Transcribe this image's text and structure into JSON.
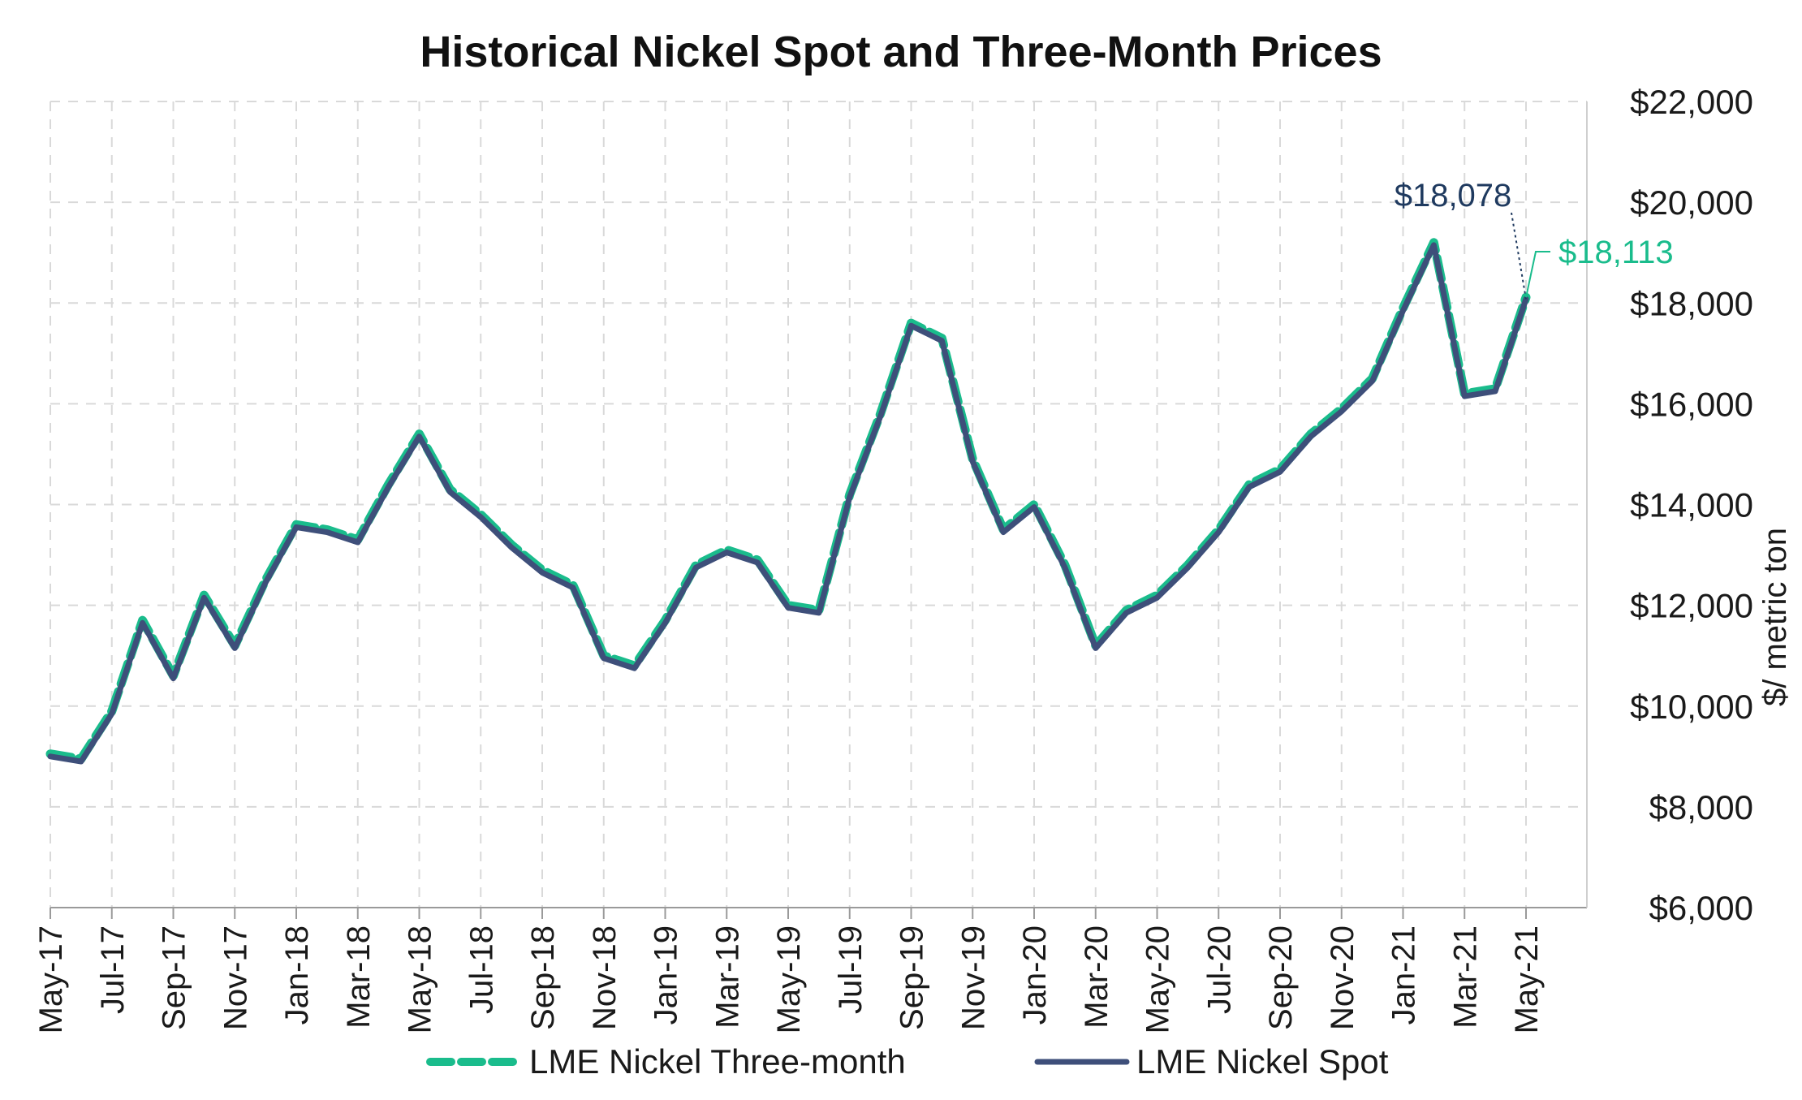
{
  "chart_data": {
    "type": "line",
    "title": "Historical Nickel Spot and Three-Month Prices",
    "ylabel": "$/ metric ton",
    "xlabel": "",
    "ylim": [
      6000,
      22000
    ],
    "y_ticks": [
      6000,
      8000,
      10000,
      12000,
      14000,
      16000,
      18000,
      20000,
      22000
    ],
    "y_tick_labels": [
      "$6,000",
      "$8,000",
      "$10,000",
      "$12,000",
      "$14,000",
      "$16,000",
      "$18,000",
      "$20,000",
      "$22,000"
    ],
    "x_ticks": [
      "May-17",
      "Jul-17",
      "Sep-17",
      "Nov-17",
      "Jan-18",
      "Mar-18",
      "May-18",
      "Jul-18",
      "Sep-18",
      "Nov-18",
      "Jan-19",
      "Mar-19",
      "May-19",
      "Jul-19",
      "Sep-19",
      "Nov-19",
      "Jan-20",
      "Mar-20",
      "May-20",
      "Jul-20",
      "Sep-20",
      "Nov-20",
      "Jan-21",
      "Mar-21",
      "May-21"
    ],
    "grid": true,
    "legend_position": "bottom",
    "series": [
      {
        "name": "LME Nickel Three-month",
        "color": "#1abc8c",
        "style": "dashed",
        "x": [
          "May-17",
          "Jun-17",
          "Jul-17",
          "Aug-17",
          "Sep-17",
          "Oct-17",
          "Nov-17",
          "Dec-17",
          "Jan-18",
          "Feb-18",
          "Mar-18",
          "Apr-18",
          "May-18",
          "Jun-18",
          "Jul-18",
          "Aug-18",
          "Sep-18",
          "Oct-18",
          "Nov-18",
          "Dec-18",
          "Jan-19",
          "Feb-19",
          "Mar-19",
          "Apr-19",
          "May-19",
          "Jun-19",
          "Jul-19",
          "Aug-19",
          "Sep-19",
          "Oct-19",
          "Nov-19",
          "Dec-19",
          "Jan-20",
          "Feb-20",
          "Mar-20",
          "Apr-20",
          "May-20",
          "Jun-20",
          "Jul-20",
          "Aug-20",
          "Sep-20",
          "Oct-20",
          "Nov-20",
          "Dec-20",
          "Jan-21",
          "Feb-21",
          "Mar-21",
          "Apr-21",
          "May-21"
        ],
        "values": [
          9050,
          8950,
          9900,
          11700,
          10600,
          12200,
          11200,
          12500,
          13600,
          13500,
          13300,
          14400,
          15400,
          14300,
          13800,
          13200,
          12700,
          12400,
          11000,
          10800,
          11700,
          12800,
          13100,
          12900,
          12000,
          11900,
          14200,
          15800,
          17600,
          17300,
          14900,
          13500,
          14000,
          12800,
          11200,
          11900,
          12200,
          12800,
          13500,
          14400,
          14700,
          15400,
          15900,
          16500,
          17900,
          19200,
          16200,
          16300,
          18113
        ]
      },
      {
        "name": "LME Nickel Spot",
        "color": "#3e4f7a",
        "style": "solid",
        "x": [
          "May-17",
          "Jun-17",
          "Jul-17",
          "Aug-17",
          "Sep-17",
          "Oct-17",
          "Nov-17",
          "Dec-17",
          "Jan-18",
          "Feb-18",
          "Mar-18",
          "Apr-18",
          "May-18",
          "Jun-18",
          "Jul-18",
          "Aug-18",
          "Sep-18",
          "Oct-18",
          "Nov-18",
          "Dec-18",
          "Jan-19",
          "Feb-19",
          "Mar-19",
          "Apr-19",
          "May-19",
          "Jun-19",
          "Jul-19",
          "Aug-19",
          "Sep-19",
          "Oct-19",
          "Nov-19",
          "Dec-19",
          "Jan-20",
          "Feb-20",
          "Mar-20",
          "Apr-20",
          "May-20",
          "Jun-20",
          "Jul-20",
          "Aug-20",
          "Sep-20",
          "Oct-20",
          "Nov-20",
          "Dec-20",
          "Jan-21",
          "Feb-21",
          "Mar-21",
          "Apr-21",
          "May-21"
        ],
        "values": [
          9000,
          8900,
          9850,
          11650,
          10550,
          12150,
          11150,
          12450,
          13550,
          13450,
          13250,
          14350,
          15350,
          14250,
          13750,
          13150,
          12650,
          12350,
          10950,
          10750,
          11650,
          12750,
          13050,
          12850,
          11950,
          11850,
          14150,
          15750,
          17550,
          17250,
          14850,
          13450,
          13950,
          12750,
          11150,
          11850,
          12150,
          12750,
          13450,
          14350,
          14650,
          15350,
          15850,
          16450,
          17850,
          19150,
          16150,
          16250,
          18078
        ]
      }
    ],
    "annotations": [
      {
        "label": "$18,078",
        "series": "LME Nickel Spot",
        "value": 18078,
        "color": "#1f3a5f"
      },
      {
        "label": "$18,113",
        "series": "LME Nickel Three-month",
        "value": 18113,
        "color": "#1abc8c"
      }
    ]
  }
}
